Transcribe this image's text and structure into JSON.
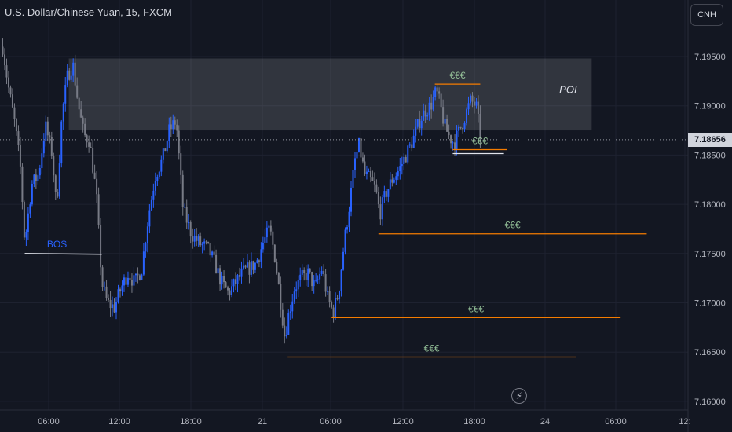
{
  "header": {
    "title": "U.S. Dollar/Chinese Yuan, 15, FXCM"
  },
  "toolbar": {
    "currency_label": "CNH"
  },
  "last_price": {
    "label": "7.18656",
    "value": 7.18656
  },
  "icons": {
    "snapshot": "lightning-icon"
  },
  "colors": {
    "background": "#131722",
    "up": "#2962ff",
    "down": "#787b86",
    "level": "#f57c00",
    "grid": "#1e2230",
    "text": "#b2b5be",
    "bos": "#2962ff"
  },
  "chart_data": {
    "type": "candlestick",
    "symbol": "U.S. Dollar/Chinese Yuan",
    "interval": "15",
    "source": "FXCM",
    "y_ticks": [
      "7.19500",
      "7.19000",
      "7.18500",
      "7.18000",
      "7.17500",
      "7.17000",
      "7.16500",
      "7.16000"
    ],
    "x_ticks": [
      "06:00",
      "12:00",
      "18:00",
      "21",
      "06:00",
      "12:00",
      "18:00",
      "24",
      "06:00",
      "12:"
    ],
    "ylim": [
      7.16,
      7.1985
    ],
    "grid": true,
    "poi_zone": {
      "label": "POI",
      "x_start": 0.1,
      "x_end": 0.86,
      "y_low": 7.1875,
      "y_high": 7.1948
    },
    "bos": {
      "label": "BOS",
      "x_start": 0.036,
      "x_end": 0.148,
      "price": 7.175
    },
    "levels": [
      {
        "label": "€€€",
        "price": 7.1922,
        "x_start": 0.632,
        "x_end": 0.698
      },
      {
        "label": "€€€",
        "price": 7.18555,
        "x_start": 0.658,
        "x_end": 0.737
      },
      {
        "label": "€€€",
        "price": 7.177,
        "x_start": 0.55,
        "x_end": 0.94
      },
      {
        "label": "€€€",
        "price": 7.1685,
        "x_start": 0.482,
        "x_end": 0.902
      },
      {
        "label": "€€€",
        "price": 7.1645,
        "x_start": 0.418,
        "x_end": 0.837
      }
    ],
    "close_path": [
      [
        0.0,
        7.198
      ],
      [
        0.012,
        7.192
      ],
      [
        0.022,
        7.188
      ],
      [
        0.03,
        7.1835
      ],
      [
        0.036,
        7.176
      ],
      [
        0.046,
        7.182
      ],
      [
        0.056,
        7.183
      ],
      [
        0.066,
        7.188
      ],
      [
        0.076,
        7.185
      ],
      [
        0.082,
        7.1795
      ],
      [
        0.09,
        7.189
      ],
      [
        0.098,
        7.193
      ],
      [
        0.106,
        7.1942
      ],
      [
        0.114,
        7.19
      ],
      [
        0.122,
        7.187
      ],
      [
        0.13,
        7.1865
      ],
      [
        0.14,
        7.181
      ],
      [
        0.148,
        7.172
      ],
      [
        0.156,
        7.17
      ],
      [
        0.166,
        7.1695
      ],
      [
        0.176,
        7.1715
      ],
      [
        0.186,
        7.173
      ],
      [
        0.196,
        7.172
      ],
      [
        0.206,
        7.1735
      ],
      [
        0.216,
        7.179
      ],
      [
        0.226,
        7.183
      ],
      [
        0.236,
        7.1845
      ],
      [
        0.246,
        7.1875
      ],
      [
        0.256,
        7.1885
      ],
      [
        0.266,
        7.1795
      ],
      [
        0.278,
        7.177
      ],
      [
        0.29,
        7.176
      ],
      [
        0.302,
        7.1755
      ],
      [
        0.312,
        7.174
      ],
      [
        0.322,
        7.172
      ],
      [
        0.332,
        7.171
      ],
      [
        0.342,
        7.172
      ],
      [
        0.352,
        7.173
      ],
      [
        0.362,
        7.1735
      ],
      [
        0.372,
        7.174
      ],
      [
        0.382,
        7.176
      ],
      [
        0.392,
        7.1775
      ],
      [
        0.4,
        7.1745
      ],
      [
        0.408,
        7.17
      ],
      [
        0.414,
        7.1665
      ],
      [
        0.42,
        7.169
      ],
      [
        0.428,
        7.1715
      ],
      [
        0.438,
        7.1725
      ],
      [
        0.448,
        7.173
      ],
      [
        0.458,
        7.1715
      ],
      [
        0.468,
        7.1735
      ],
      [
        0.476,
        7.1705
      ],
      [
        0.484,
        7.169
      ],
      [
        0.492,
        7.171
      ],
      [
        0.5,
        7.176
      ],
      [
        0.508,
        7.18
      ],
      [
        0.516,
        7.1845
      ],
      [
        0.522,
        7.186
      ],
      [
        0.53,
        7.183
      ],
      [
        0.538,
        7.1825
      ],
      [
        0.546,
        7.1815
      ],
      [
        0.552,
        7.179
      ],
      [
        0.56,
        7.181
      ],
      [
        0.57,
        7.1825
      ],
      [
        0.58,
        7.1835
      ],
      [
        0.59,
        7.185
      ],
      [
        0.6,
        7.1865
      ],
      [
        0.61,
        7.1885
      ],
      [
        0.618,
        7.1895
      ],
      [
        0.626,
        7.19
      ],
      [
        0.634,
        7.1915
      ],
      [
        0.64,
        7.19
      ],
      [
        0.646,
        7.188
      ],
      [
        0.652,
        7.187
      ],
      [
        0.66,
        7.1862
      ],
      [
        0.668,
        7.1875
      ],
      [
        0.676,
        7.189
      ],
      [
        0.684,
        7.1905
      ],
      [
        0.692,
        7.19
      ],
      [
        0.698,
        7.187
      ]
    ]
  }
}
